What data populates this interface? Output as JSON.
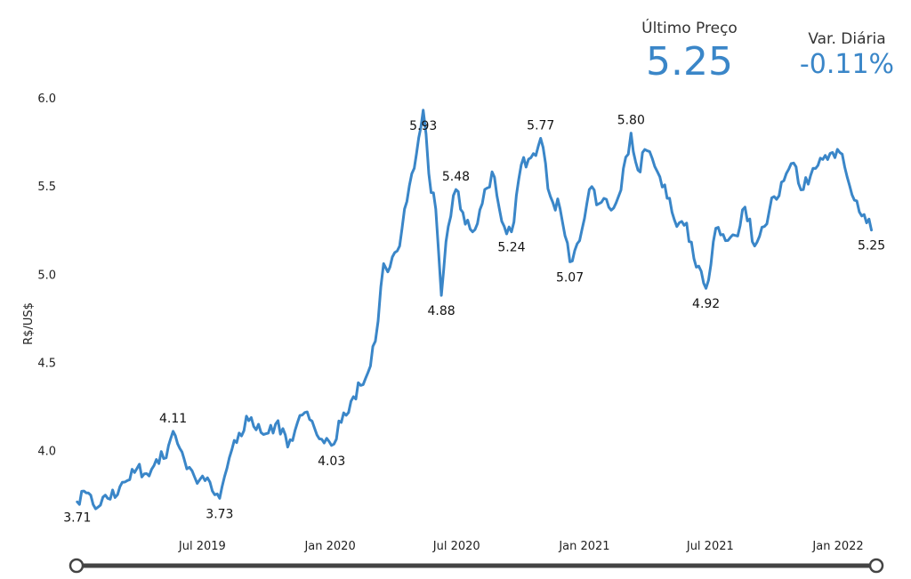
{
  "kpis": {
    "last": {
      "label": "Último Preço",
      "value": "5.25"
    },
    "change": {
      "label": "Var. Diária",
      "value": "-0.11%"
    }
  },
  "colors": {
    "line": "#3a86c8",
    "slider": "#444444",
    "text": "#222222"
  },
  "chart_data": {
    "type": "line",
    "ylabel": "R$/US$",
    "ylim": [
      3.55,
      6.07
    ],
    "xlim": [
      "2019-01-01",
      "2022-02-25"
    ],
    "yticks": [
      4.0,
      4.5,
      5.0,
      5.5,
      6.0
    ],
    "xticks": [
      {
        "date": "2019-07-01",
        "label": "Jul 2019"
      },
      {
        "date": "2020-01-01",
        "label": "Jan 2020"
      },
      {
        "date": "2020-07-01",
        "label": "Jul 2020"
      },
      {
        "date": "2021-01-01",
        "label": "Jan 2021"
      },
      {
        "date": "2021-07-01",
        "label": "Jul 2021"
      },
      {
        "date": "2022-01-01",
        "label": "Jan 2022"
      }
    ],
    "series": [
      {
        "points": [
          [
            "2019-01-02",
            3.71
          ],
          [
            "2019-01-18",
            3.76
          ],
          [
            "2019-02-01",
            3.68
          ],
          [
            "2019-02-15",
            3.73
          ],
          [
            "2019-03-01",
            3.75
          ],
          [
            "2019-03-15",
            3.83
          ],
          [
            "2019-03-29",
            3.9
          ],
          [
            "2019-04-12",
            3.87
          ],
          [
            "2019-04-26",
            3.95
          ],
          [
            "2019-05-10",
            3.96
          ],
          [
            "2019-05-20",
            4.11
          ],
          [
            "2019-06-05",
            3.95
          ],
          [
            "2019-06-20",
            3.85
          ],
          [
            "2019-07-05",
            3.83
          ],
          [
            "2019-07-19",
            3.75
          ],
          [
            "2019-07-26",
            3.73
          ],
          [
            "2019-08-09",
            3.96
          ],
          [
            "2019-08-23",
            4.1
          ],
          [
            "2019-09-06",
            4.17
          ],
          [
            "2019-09-20",
            4.15
          ],
          [
            "2019-10-04",
            4.1
          ],
          [
            "2019-10-18",
            4.17
          ],
          [
            "2019-11-01",
            4.02
          ],
          [
            "2019-11-15",
            4.16
          ],
          [
            "2019-11-29",
            4.22
          ],
          [
            "2019-12-13",
            4.09
          ],
          [
            "2019-12-27",
            4.07
          ],
          [
            "2020-01-03",
            4.03
          ],
          [
            "2020-01-17",
            4.16
          ],
          [
            "2020-01-31",
            4.28
          ],
          [
            "2020-02-14",
            4.37
          ],
          [
            "2020-02-28",
            4.48
          ],
          [
            "2020-03-06",
            4.62
          ],
          [
            "2020-03-18",
            5.06
          ],
          [
            "2020-03-27",
            5.04
          ],
          [
            "2020-04-10",
            5.16
          ],
          [
            "2020-04-24",
            5.5
          ],
          [
            "2020-05-01",
            5.6
          ],
          [
            "2020-05-14",
            5.93
          ],
          [
            "2020-05-22",
            5.57
          ],
          [
            "2020-06-01",
            5.37
          ],
          [
            "2020-06-09",
            4.88
          ],
          [
            "2020-06-19",
            5.27
          ],
          [
            "2020-06-30",
            5.48
          ],
          [
            "2020-07-10",
            5.35
          ],
          [
            "2020-07-24",
            5.24
          ],
          [
            "2020-08-07",
            5.4
          ],
          [
            "2020-08-21",
            5.58
          ],
          [
            "2020-09-04",
            5.3
          ],
          [
            "2020-09-18",
            5.24
          ],
          [
            "2020-10-02",
            5.62
          ],
          [
            "2020-10-16",
            5.66
          ],
          [
            "2020-10-30",
            5.77
          ],
          [
            "2020-11-13",
            5.44
          ],
          [
            "2020-11-27",
            5.37
          ],
          [
            "2020-12-11",
            5.07
          ],
          [
            "2020-12-25",
            5.19
          ],
          [
            "2021-01-08",
            5.48
          ],
          [
            "2021-01-22",
            5.4
          ],
          [
            "2021-02-05",
            5.38
          ],
          [
            "2021-02-19",
            5.44
          ],
          [
            "2021-03-05",
            5.68
          ],
          [
            "2021-03-09",
            5.8
          ],
          [
            "2021-03-19",
            5.59
          ],
          [
            "2021-04-01",
            5.7
          ],
          [
            "2021-04-16",
            5.58
          ],
          [
            "2021-04-30",
            5.43
          ],
          [
            "2021-05-14",
            5.27
          ],
          [
            "2021-05-28",
            5.29
          ],
          [
            "2021-06-11",
            5.04
          ],
          [
            "2021-06-25",
            4.92
          ],
          [
            "2021-07-09",
            5.26
          ],
          [
            "2021-07-23",
            5.19
          ],
          [
            "2021-08-06",
            5.22
          ],
          [
            "2021-08-20",
            5.38
          ],
          [
            "2021-09-03",
            5.16
          ],
          [
            "2021-09-17",
            5.27
          ],
          [
            "2021-10-01",
            5.44
          ],
          [
            "2021-10-15",
            5.53
          ],
          [
            "2021-10-29",
            5.63
          ],
          [
            "2021-11-12",
            5.48
          ],
          [
            "2021-11-26",
            5.6
          ],
          [
            "2021-12-10",
            5.65
          ],
          [
            "2021-12-24",
            5.69
          ],
          [
            "2022-01-07",
            5.68
          ],
          [
            "2022-01-21",
            5.45
          ],
          [
            "2022-02-04",
            5.33
          ],
          [
            "2022-02-18",
            5.25
          ]
        ]
      }
    ],
    "annotations": [
      {
        "date": "2019-01-02",
        "y": 3.71,
        "label": "3.71",
        "pos": "below"
      },
      {
        "date": "2019-05-20",
        "y": 4.11,
        "label": "4.11",
        "pos": "above"
      },
      {
        "date": "2019-07-26",
        "y": 3.73,
        "label": "3.73",
        "pos": "below"
      },
      {
        "date": "2020-01-03",
        "y": 4.03,
        "label": "4.03",
        "pos": "below"
      },
      {
        "date": "2020-05-14",
        "y": 5.93,
        "label": "5.93",
        "pos": "below"
      },
      {
        "date": "2020-06-09",
        "y": 4.88,
        "label": "4.88",
        "pos": "below"
      },
      {
        "date": "2020-06-30",
        "y": 5.48,
        "label": "5.48",
        "pos": "above"
      },
      {
        "date": "2020-09-18",
        "y": 5.24,
        "label": "5.24",
        "pos": "below"
      },
      {
        "date": "2020-10-30",
        "y": 5.77,
        "label": "5.77",
        "pos": "above"
      },
      {
        "date": "2020-12-11",
        "y": 5.07,
        "label": "5.07",
        "pos": "below"
      },
      {
        "date": "2021-03-09",
        "y": 5.8,
        "label": "5.80",
        "pos": "above"
      },
      {
        "date": "2021-06-25",
        "y": 4.92,
        "label": "4.92",
        "pos": "below"
      },
      {
        "date": "2022-02-18",
        "y": 5.25,
        "label": "5.25",
        "pos": "below"
      }
    ]
  }
}
